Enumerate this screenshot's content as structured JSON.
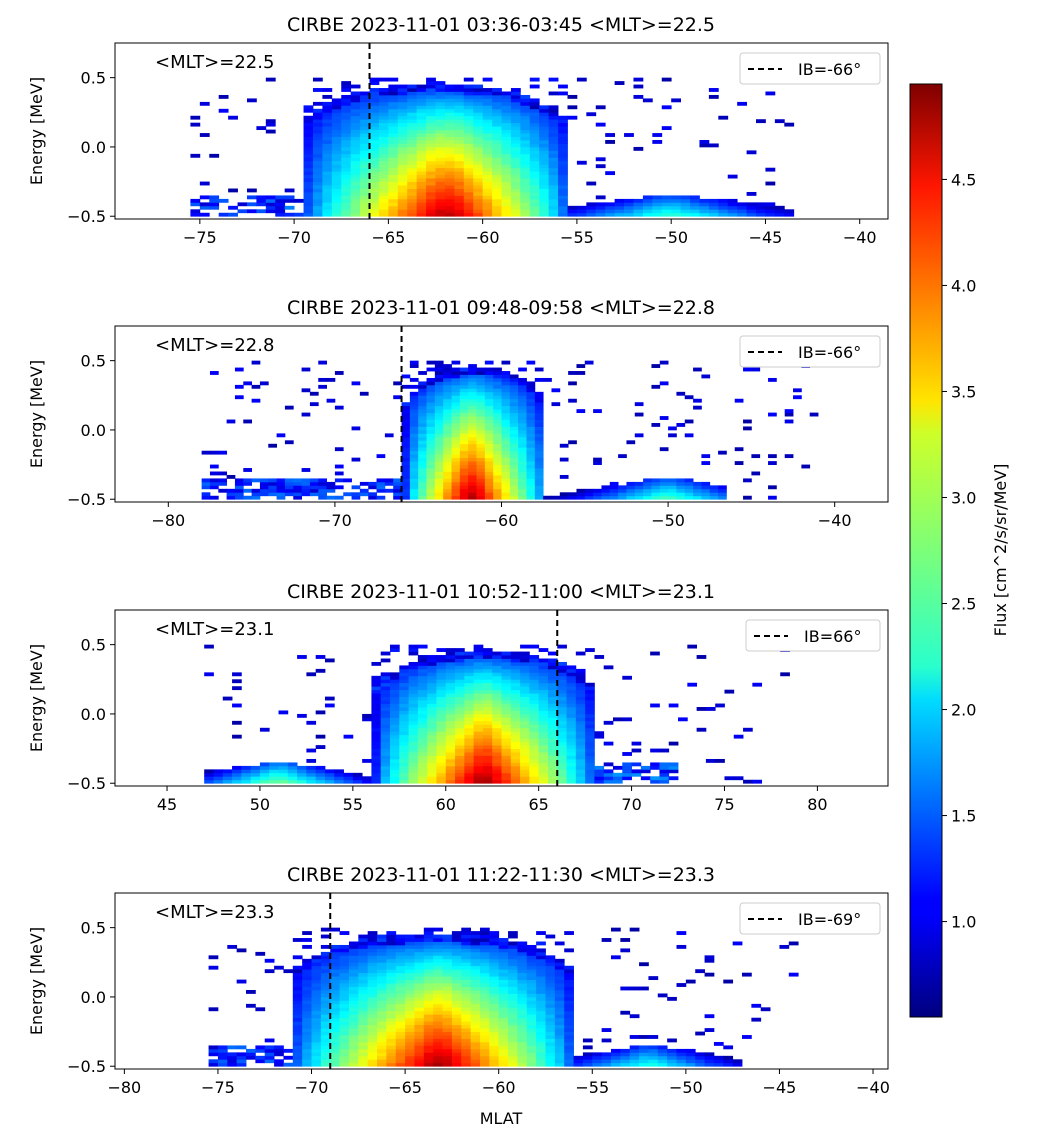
{
  "colorbar": {
    "label": "Flux [cm^2/s/sr/MeV]",
    "range": [
      0.55,
      4.95
    ],
    "ticks": [
      "1.0",
      "1.5",
      "2.0",
      "2.5",
      "3.0",
      "3.5",
      "4.0",
      "4.5"
    ],
    "tick_values": [
      1.0,
      1.5,
      2.0,
      2.5,
      3.0,
      3.5,
      4.0,
      4.5
    ],
    "colormap": "jet"
  },
  "chart_data": [
    {
      "type": "heatmap",
      "title": "CIRBE 2023-11-01 03:36-03:45 <MLT>=22.5",
      "annotation": "<MLT>=22.5",
      "xlabel": "",
      "ylabel": "Energy [MeV]",
      "xlim": [
        -79.5,
        -38.5
      ],
      "ylim": [
        -0.52,
        0.75
      ],
      "xticks": [
        "−75",
        "−70",
        "−65",
        "−60",
        "−55",
        "−50",
        "−45",
        "−40"
      ],
      "xtick_values": [
        -75,
        -70,
        -65,
        -60,
        -55,
        -50,
        -45,
        -40
      ],
      "yticks": [
        "−0.5",
        "0.0",
        "0.5"
      ],
      "ytick_values": [
        -0.5,
        0.0,
        0.5
      ],
      "boundary": {
        "x": -66,
        "legend": "IB=-66°"
      },
      "data_extent": [
        -75.5,
        -43
      ],
      "belt": {
        "x_start": -69.5,
        "x_end": -55.5,
        "peak_x": -61.5,
        "peak_flux": 4.9,
        "cap_energy": 0.45
      },
      "low_band": {
        "x_start": -55.5,
        "x_end": -43.5,
        "peak_x": -50,
        "peak_flux": 2.5
      },
      "left_band": {
        "x_start": -75.5,
        "x_end": -69.5,
        "peak_flux": 1.7
      },
      "bin_width": 0.5,
      "seed": 11
    },
    {
      "type": "heatmap",
      "title": "CIRBE 2023-11-01 09:48-09:58 <MLT>=22.8",
      "annotation": "<MLT>=22.8",
      "xlabel": "",
      "ylabel": "Energy [MeV]",
      "xlim": [
        -83.2,
        -36.8
      ],
      "ylim": [
        -0.52,
        0.75
      ],
      "xticks": [
        "−80",
        "−70",
        "−60",
        "−50",
        "−40"
      ],
      "xtick_values": [
        -80,
        -70,
        -60,
        -50,
        -40
      ],
      "yticks": [
        "−0.5",
        "0.0",
        "0.5"
      ],
      "ytick_values": [
        -0.5,
        0.0,
        0.5
      ],
      "boundary": {
        "x": -66,
        "legend": "IB=-66°"
      },
      "data_extent": [
        -78,
        -41
      ],
      "belt": {
        "x_start": -65.8,
        "x_end": -57.3,
        "peak_x": -62,
        "peak_flux": 4.9,
        "cap_energy": 0.45
      },
      "low_band": {
        "x_start": -57.3,
        "x_end": -46.5,
        "peak_x": -50,
        "peak_flux": 2.6
      },
      "left_band": {
        "x_start": -78,
        "x_end": -65.8,
        "peak_flux": 1.6
      },
      "bin_width": 0.5,
      "seed": 23
    },
    {
      "type": "heatmap",
      "title": "CIRBE 2023-11-01 10:52-11:00 <MLT>=23.1",
      "annotation": "<MLT>=23.1",
      "xlabel": "",
      "ylabel": "Energy [MeV]",
      "xlim": [
        42.2,
        83.8
      ],
      "ylim": [
        -0.52,
        0.75
      ],
      "xticks": [
        "45",
        "50",
        "55",
        "60",
        "65",
        "70",
        "75",
        "80"
      ],
      "xtick_values": [
        45,
        50,
        55,
        60,
        65,
        70,
        75,
        80
      ],
      "yticks": [
        "−0.5",
        "0.0",
        "0.5"
      ],
      "ytick_values": [
        -0.5,
        0.0,
        0.5
      ],
      "boundary": {
        "x": 66,
        "legend": "IB=66°"
      },
      "data_extent": [
        47,
        78.5
      ],
      "belt": {
        "x_start": 56.2,
        "x_end": 68,
        "peak_x": 62,
        "peak_flux": 4.9,
        "cap_energy": 0.45
      },
      "low_band": {
        "x_start": 47,
        "x_end": 56.2,
        "peak_x": 51,
        "peak_flux": 2.8
      },
      "left_band": {
        "x_start": 68,
        "x_end": 72.5,
        "peak_flux": 1.8
      },
      "bin_width": 0.5,
      "seed": 37
    },
    {
      "type": "heatmap",
      "title": "CIRBE 2023-11-01 11:22-11:30 <MLT>=23.3",
      "annotation": "<MLT>=23.3",
      "xlabel": "MLAT",
      "ylabel": "Energy [MeV]",
      "xlim": [
        -80.5,
        -39.2
      ],
      "ylim": [
        -0.52,
        0.75
      ],
      "xticks": [
        "−80",
        "−75",
        "−70",
        "−65",
        "−60",
        "−55",
        "−50",
        "−45",
        "−40"
      ],
      "xtick_values": [
        -80,
        -75,
        -70,
        -65,
        -60,
        -55,
        -50,
        -45,
        -40
      ],
      "yticks": [
        "−0.5",
        "0.0",
        "0.5"
      ],
      "ytick_values": [
        -0.5,
        0.0,
        0.5
      ],
      "boundary": {
        "x": -69,
        "legend": "IB=-69°"
      },
      "data_extent": [
        -75.5,
        -44
      ],
      "belt": {
        "x_start": -71,
        "x_end": -56,
        "peak_x": -63,
        "peak_flux": 4.9,
        "cap_energy": 0.45
      },
      "low_band": {
        "x_start": -56,
        "x_end": -47,
        "peak_x": -52,
        "peak_flux": 2.4
      },
      "left_band": {
        "x_start": -75.5,
        "x_end": -71,
        "peak_flux": 1.6
      },
      "bin_width": 0.5,
      "seed": 53
    }
  ]
}
